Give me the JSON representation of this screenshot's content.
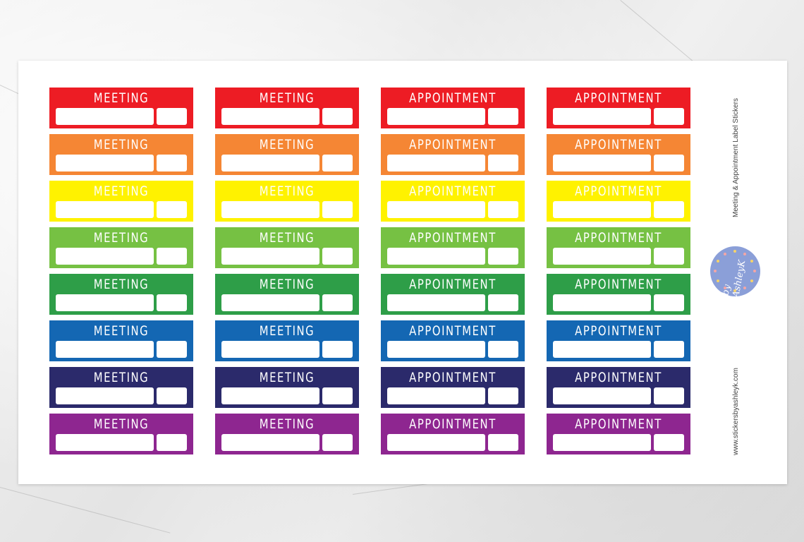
{
  "sheet": {
    "title": "Meeting & Appointment  Label Stickers",
    "website": "www.stickersbyashleyk.com",
    "logo_text": "by AshleyK"
  },
  "columns": [
    {
      "label": "MEETING"
    },
    {
      "label": "MEETING"
    },
    {
      "label": "APPOINTMENT"
    },
    {
      "label": "APPOINTMENT"
    }
  ],
  "row_colors": [
    {
      "name": "red",
      "hex": "#ED1C24"
    },
    {
      "name": "orange",
      "hex": "#F58634"
    },
    {
      "name": "yellow",
      "hex": "#FFF200"
    },
    {
      "name": "light-green",
      "hex": "#76C143"
    },
    {
      "name": "green",
      "hex": "#2E9E48"
    },
    {
      "name": "blue",
      "hex": "#1467B3"
    },
    {
      "name": "navy",
      "hex": "#2B2A6B"
    },
    {
      "name": "purple",
      "hex": "#8E2690"
    }
  ],
  "logo_color": "#8B9FD8"
}
